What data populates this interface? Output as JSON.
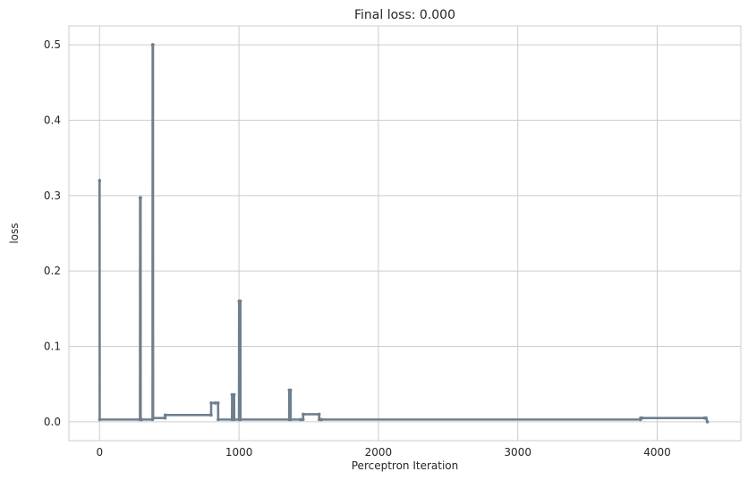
{
  "chart_data": {
    "type": "line",
    "title": "Final loss: 0.000",
    "xlabel": "Perceptron Iteration",
    "ylabel": "loss",
    "xlim": [
      -220,
      4600
    ],
    "ylim": [
      -0.025,
      0.525
    ],
    "xticks": [
      0,
      1000,
      2000,
      3000,
      4000
    ],
    "yticks": [
      0.0,
      0.1,
      0.2,
      0.3,
      0.4,
      0.5
    ],
    "xtick_labels": [
      "0",
      "1000",
      "2000",
      "3000",
      "4000"
    ],
    "ytick_labels": [
      "0.0",
      "0.1",
      "0.2",
      "0.3",
      "0.4",
      "0.5"
    ],
    "grid": true,
    "style": {
      "series_color": "#6e7f8e",
      "grid_color": "#cccccc",
      "frame_color": "#cccccc",
      "text_color": "#262626"
    },
    "series": [
      {
        "name": "",
        "color": "#6e7f8e",
        "x": [
          0,
          1,
          290,
          291,
          294,
          295,
          300,
          301,
          380,
          381,
          383,
          384,
          470,
          471,
          800,
          801,
          830,
          831,
          850,
          851,
          950,
          951,
          965,
          966,
          1000,
          1001,
          1010,
          1011,
          1360,
          1361,
          1370,
          1371,
          1440,
          1441,
          1460,
          1461,
          1575,
          1576,
          1590,
          1591,
          3880,
          3881,
          3890,
          3891,
          4340,
          4341,
          4350,
          4351,
          4360
        ],
        "y": [
          0.32,
          0.003,
          0.003,
          0.297,
          0.297,
          0.003,
          0.003,
          0.003,
          0.003,
          0.5,
          0.5,
          0.005,
          0.005,
          0.009,
          0.009,
          0.025,
          0.025,
          0.025,
          0.025,
          0.003,
          0.003,
          0.036,
          0.036,
          0.003,
          0.003,
          0.16,
          0.16,
          0.003,
          0.003,
          0.042,
          0.042,
          0.003,
          0.003,
          0.003,
          0.003,
          0.01,
          0.01,
          0.003,
          0.003,
          0.003,
          0.003,
          0.005,
          0.005,
          0.005,
          0.005,
          0.005,
          0.005,
          0.005,
          0.0
        ]
      }
    ]
  }
}
